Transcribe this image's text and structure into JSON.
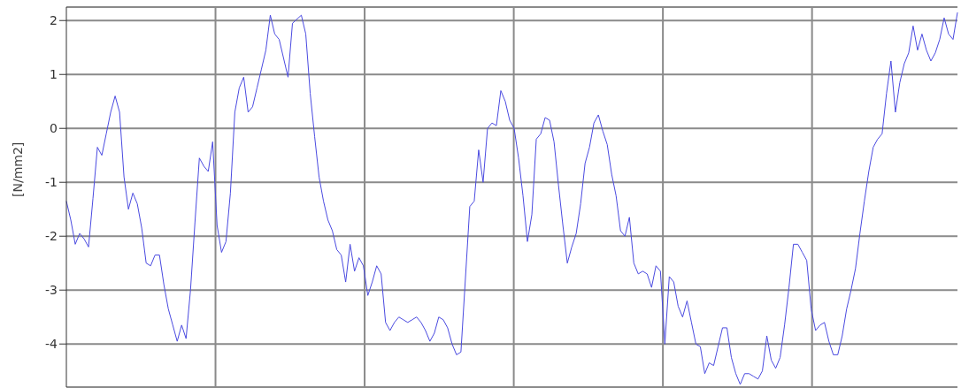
{
  "chart_data": {
    "type": "line",
    "ylabel": "[N/mm2]",
    "ylim": [
      -4.8,
      2.25
    ],
    "yticks": [
      -4,
      -3,
      -2,
      -1,
      0,
      1,
      2
    ],
    "grid": true,
    "marker": "none",
    "categories": [
      null,
      null,
      null,
      null,
      null,
      null,
      null,
      null,
      null,
      null,
      null,
      null,
      null,
      null,
      null,
      null,
      null,
      null,
      null,
      null,
      null,
      null,
      null,
      null,
      null,
      null,
      null,
      null,
      null,
      null,
      null,
      null,
      null,
      null,
      null,
      null,
      null,
      null,
      null,
      null,
      null,
      null,
      null,
      null,
      null,
      null,
      null,
      null,
      null,
      null,
      null,
      null,
      null,
      null,
      null,
      null,
      null,
      null,
      null,
      null,
      null,
      null,
      null,
      null,
      null,
      null,
      null,
      null,
      null,
      null,
      null,
      null,
      null,
      null,
      null,
      null,
      null,
      null,
      null,
      null,
      null,
      null,
      null,
      null,
      null,
      null,
      null,
      null,
      null,
      null,
      null,
      null,
      null,
      null,
      null,
      null,
      null,
      null,
      null,
      null,
      null,
      null,
      null,
      null,
      null,
      null,
      null,
      null,
      null,
      null,
      null,
      null,
      null,
      null,
      null,
      null,
      null,
      null,
      null,
      null,
      null,
      null,
      null,
      null,
      null,
      null,
      null,
      null,
      null,
      null,
      null,
      null,
      null,
      null,
      null,
      null,
      null,
      null,
      null,
      null,
      null,
      null,
      null,
      null,
      null,
      null,
      null,
      null,
      null,
      null,
      null,
      null,
      null,
      null,
      null,
      null,
      null,
      null,
      null,
      null,
      null,
      null,
      null,
      null,
      null,
      null,
      null,
      null,
      null,
      null,
      null,
      null,
      null,
      null,
      null,
      null,
      null,
      null,
      null,
      null,
      null,
      null,
      null,
      null,
      null,
      null,
      null,
      null,
      null,
      null,
      null,
      null,
      null,
      null,
      null,
      null,
      null,
      null,
      null,
      null,
      null,
      null
    ],
    "series": [
      {
        "color": "#4a4ae0",
        "values": [
          -1.35,
          -1.7,
          -2.15,
          -1.95,
          -2.05,
          -2.2,
          -1.3,
          -0.35,
          -0.5,
          -0.1,
          0.3,
          0.6,
          0.3,
          -0.9,
          -1.5,
          -1.2,
          -1.4,
          -1.85,
          -2.5,
          -2.55,
          -2.35,
          -2.35,
          -2.9,
          -3.35,
          -3.65,
          -3.95,
          -3.65,
          -3.9,
          -3.0,
          -1.75,
          -0.55,
          -0.7,
          -0.8,
          -0.25,
          -1.8,
          -2.3,
          -2.1,
          -1.2,
          0.3,
          0.75,
          0.95,
          0.3,
          0.4,
          0.75,
          1.1,
          1.45,
          2.1,
          1.75,
          1.65,
          null,
          0.95,
          1.95,
          null,
          2.1,
          1.75,
          0.65,
          -0.15,
          -0.9,
          -1.35,
          -1.7,
          -1.9,
          -2.25,
          -2.35,
          -2.85,
          -2.15,
          -2.65,
          -2.4,
          -2.55,
          -3.1,
          -2.85,
          -2.55,
          -2.7,
          -3.6,
          -3.75,
          -3.6,
          -3.5,
          -3.55,
          -3.6,
          -3.55,
          -3.5,
          -3.6,
          -3.75,
          -3.95,
          -3.8,
          -3.5,
          -3.55,
          -3.7,
          -4.0,
          -4.2,
          -4.15,
          -2.8,
          -1.45,
          -1.35,
          -0.4,
          -1.0,
          0.0,
          0.1,
          0.05,
          0.7,
          0.5,
          0.15,
          0.0,
          -0.55,
          -1.25,
          -2.1,
          -1.6,
          -0.2,
          -0.1,
          0.2,
          0.15,
          -0.25,
          -1.05,
          -1.8,
          -2.5,
          -2.2,
          -1.95,
          -1.4,
          -0.65,
          -0.35,
          0.1,
          0.25,
          -0.05,
          -0.3,
          -0.85,
          -1.25,
          -1.9,
          -2.0,
          -1.65,
          -2.5,
          -2.7,
          -2.65,
          -2.7,
          -2.95,
          -2.55,
          -2.65,
          -4.0,
          -2.75,
          -2.85,
          -3.3,
          -3.5,
          -3.2,
          -3.6,
          -4.0,
          -4.05,
          -4.55,
          -4.35,
          -4.4,
          -4.05,
          -3.7,
          -3.7,
          -4.25,
          -4.55,
          -4.75,
          -4.55,
          -4.55,
          -4.6,
          -4.65,
          -4.5,
          -3.85,
          -4.3,
          -4.45,
          -4.25,
          -3.65,
          -2.95,
          -2.15,
          -2.15,
          -2.3,
          -2.45,
          -3.35,
          -3.75,
          -3.65,
          -3.6,
          -3.95,
          -4.2,
          -4.2,
          -3.85,
          -3.35,
          -3.0,
          -2.6,
          -1.95,
          -1.35,
          -0.8,
          -0.35,
          -0.2,
          -0.1,
          0.65,
          1.25,
          0.3,
          0.85,
          1.2,
          1.4,
          1.9,
          1.45,
          1.75,
          1.45,
          1.25,
          1.4,
          1.65,
          2.05,
          1.75,
          1.65,
          2.15
        ]
      }
    ]
  }
}
